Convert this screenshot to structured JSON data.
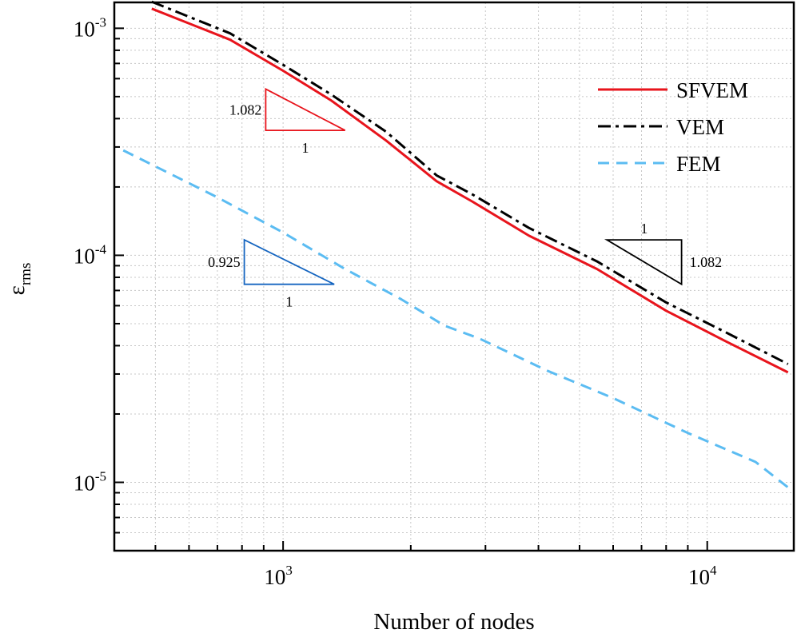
{
  "chart_data": {
    "type": "line",
    "title": "",
    "xlabel": "Number of nodes",
    "ylabel": {
      "symbol": "ε",
      "subscript": "rms"
    },
    "xscale": "log",
    "yscale": "log",
    "xlim": [
      400,
      16000
    ],
    "ylim": [
      5e-06,
      0.0013
    ],
    "grid": true,
    "legend_position": "top-right",
    "x_ticks": [
      {
        "value": 1000,
        "base": "10",
        "exp": "3"
      },
      {
        "value": 10000,
        "base": "10",
        "exp": "4"
      }
    ],
    "y_ticks": [
      {
        "value": 0.001,
        "base": "10",
        "exp": "-3"
      },
      {
        "value": 0.0001,
        "base": "10",
        "exp": "-4"
      },
      {
        "value": 1e-05,
        "base": "10",
        "exp": "-5"
      }
    ],
    "series": [
      {
        "name": "SFVEM",
        "color": "#e8141c",
        "style": "solid",
        "points": [
          [
            490,
            0.00122
          ],
          [
            750,
            0.00089
          ],
          [
            1000,
            0.00065
          ],
          [
            1300,
            0.00048
          ],
          [
            1750,
            0.00032
          ],
          [
            2300,
            0.000212
          ],
          [
            2800,
            0.000172
          ],
          [
            3800,
            0.000122
          ],
          [
            5500,
            8.7e-05
          ],
          [
            8000,
            5.7e-05
          ],
          [
            11000,
            4.2e-05
          ],
          [
            15500,
            3.05e-05
          ]
        ]
      },
      {
        "name": "VEM",
        "color": "#000000",
        "style": "dashdot",
        "points": [
          [
            490,
            0.00131
          ],
          [
            750,
            0.00095
          ],
          [
            1000,
            0.00069
          ],
          [
            1300,
            0.00051
          ],
          [
            1750,
            0.00035
          ],
          [
            2300,
            0.000225
          ],
          [
            2800,
            0.000185
          ],
          [
            3800,
            0.000132
          ],
          [
            5500,
            9.4e-05
          ],
          [
            8000,
            6.2e-05
          ],
          [
            11000,
            4.6e-05
          ],
          [
            15500,
            3.32e-05
          ]
        ]
      },
      {
        "name": "FEM",
        "color": "#5bbcf2",
        "style": "dashed",
        "points": [
          [
            420,
            0.00029
          ],
          [
            700,
            0.00018
          ],
          [
            1000,
            0.000126
          ],
          [
            1400,
            8.7e-05
          ],
          [
            1900,
            6.4e-05
          ],
          [
            2400,
            4.9e-05
          ],
          [
            2900,
            4.3e-05
          ],
          [
            4200,
            3.1e-05
          ],
          [
            6000,
            2.35e-05
          ],
          [
            9000,
            1.65e-05
          ],
          [
            13000,
            1.23e-05
          ],
          [
            15500,
            9.5e-06
          ]
        ]
      }
    ],
    "slope_triangles": [
      {
        "color": "#e8141c",
        "orientation": "lower",
        "x": [
          910,
          1400
        ],
        "y": [
          0.000355,
          0.00054
        ],
        "rise_label": "1.082",
        "run_label": "1"
      },
      {
        "color": "#1565c0",
        "orientation": "lower",
        "x": [
          810,
          1320
        ],
        "y": [
          7.45e-05,
          0.000117
        ],
        "rise_label": "0.925",
        "run_label": "1"
      },
      {
        "color": "#000000",
        "orientation": "upper",
        "x": [
          5800,
          8700
        ],
        "y": [
          7.45e-05,
          0.000117
        ],
        "rise_label": "1.082",
        "run_label": "1"
      }
    ]
  }
}
